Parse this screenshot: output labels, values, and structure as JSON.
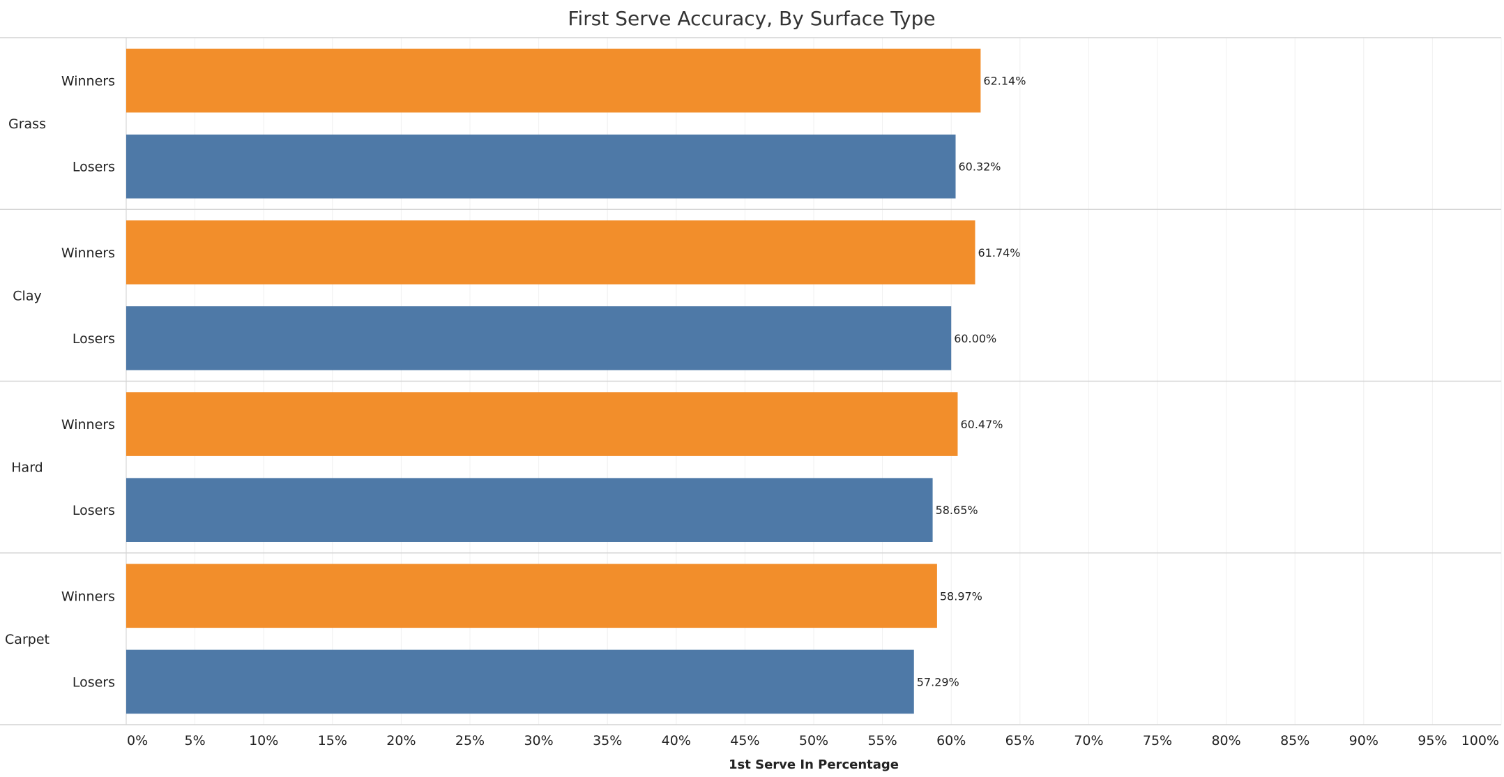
{
  "chart_data": {
    "type": "bar",
    "orientation": "horizontal",
    "title": "First Serve Accuracy, By Surface Type",
    "xlabel": "1st Serve In Percentage",
    "xlim": [
      0,
      100
    ],
    "xticks": [
      0,
      5,
      10,
      15,
      20,
      25,
      30,
      35,
      40,
      45,
      50,
      55,
      60,
      65,
      70,
      75,
      80,
      85,
      90,
      95,
      100
    ],
    "xtick_labels": [
      "0%",
      "5%",
      "10%",
      "15%",
      "20%",
      "25%",
      "30%",
      "35%",
      "40%",
      "45%",
      "50%",
      "55%",
      "60%",
      "65%",
      "70%",
      "75%",
      "80%",
      "85%",
      "90%",
      "95%",
      "100%"
    ],
    "grid": true,
    "colors": {
      "Winners": "#f28e2b",
      "Losers": "#4e79a7"
    },
    "groups": [
      {
        "name": "Grass",
        "rows": [
          {
            "label": "Winners",
            "value": 62.14,
            "value_label": "62.14%"
          },
          {
            "label": "Losers",
            "value": 60.32,
            "value_label": "60.32%"
          }
        ]
      },
      {
        "name": "Clay",
        "rows": [
          {
            "label": "Winners",
            "value": 61.74,
            "value_label": "61.74%"
          },
          {
            "label": "Losers",
            "value": 60.0,
            "value_label": "60.00%"
          }
        ]
      },
      {
        "name": "Hard",
        "rows": [
          {
            "label": "Winners",
            "value": 60.47,
            "value_label": "60.47%"
          },
          {
            "label": "Losers",
            "value": 58.65,
            "value_label": "58.65%"
          }
        ]
      },
      {
        "name": "Carpet",
        "rows": [
          {
            "label": "Winners",
            "value": 58.97,
            "value_label": "58.97%"
          },
          {
            "label": "Losers",
            "value": 57.29,
            "value_label": "57.29%"
          }
        ]
      }
    ]
  }
}
